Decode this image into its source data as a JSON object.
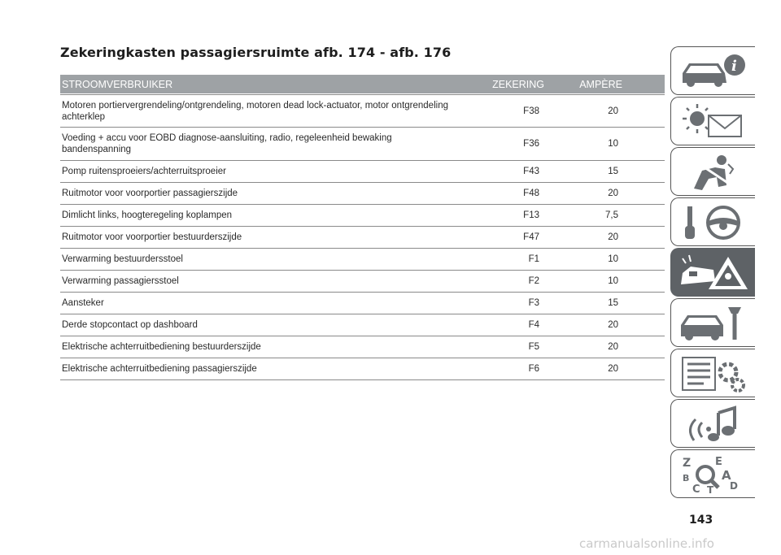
{
  "title": "Zekeringkasten passagiersruimte afb. 174 - afb. 176",
  "table": {
    "headers": {
      "consumer": "STROOMVERBRUIKER",
      "fuse": "ZEKERING",
      "ampere": "AMPÈRE"
    },
    "rows": [
      {
        "consumer": "Motoren portiervergrendeling/ontgrendeling, motoren dead lock-actuator, motor ontgrendeling achterklep",
        "fuse": "F38",
        "ampere": "20"
      },
      {
        "consumer": "Voeding + accu voor EOBD diagnose-aansluiting, radio, regeleenheid bewaking bandenspanning",
        "fuse": "F36",
        "ampere": "10"
      },
      {
        "consumer": "Pomp ruitensproeiers/achterruitsproeier",
        "fuse": "F43",
        "ampere": "15"
      },
      {
        "consumer": "Ruitmotor voor voorportier passagierszijde",
        "fuse": "F48",
        "ampere": "20"
      },
      {
        "consumer": "Dimlicht links, hoogteregeling koplampen",
        "fuse": "F13",
        "ampere": "7,5"
      },
      {
        "consumer": "Ruitmotor voor voorportier bestuurderszijde",
        "fuse": "F47",
        "ampere": "20"
      },
      {
        "consumer": "Verwarming bestuurdersstoel",
        "fuse": "F1",
        "ampere": "10"
      },
      {
        "consumer": "Verwarming passagiersstoel",
        "fuse": "F2",
        "ampere": "10"
      },
      {
        "consumer": "Aansteker",
        "fuse": "F3",
        "ampere": "15"
      },
      {
        "consumer": "Derde stopcontact op dashboard",
        "fuse": "F4",
        "ampere": "20"
      },
      {
        "consumer": "Elektrische achterruitbediening bestuurderszijde",
        "fuse": "F5",
        "ampere": "20"
      },
      {
        "consumer": "Elektrische achterruitbediening passagierszijde",
        "fuse": "F6",
        "ampere": "20"
      }
    ]
  },
  "sidebar": {
    "tabs": [
      {
        "icon": "car-info-icon"
      },
      {
        "icon": "warning-lights-message-icon"
      },
      {
        "icon": "safety-airbag-icon"
      },
      {
        "icon": "key-steering-wheel-icon"
      },
      {
        "icon": "car-emergency-icon",
        "active": true
      },
      {
        "icon": "car-maintenance-icon"
      },
      {
        "icon": "technical-data-icon"
      },
      {
        "icon": "multimedia-icon"
      },
      {
        "icon": "index-icon",
        "letters": [
          "Z",
          "E",
          "B",
          "A",
          "C",
          "D",
          "T"
        ]
      }
    ]
  },
  "page_number": "143",
  "watermark": "carmanualsonline.info",
  "colors": {
    "header_bg": "#9ea2a5",
    "active_tab": "#5e6266",
    "rule": "#8a8a8a"
  }
}
